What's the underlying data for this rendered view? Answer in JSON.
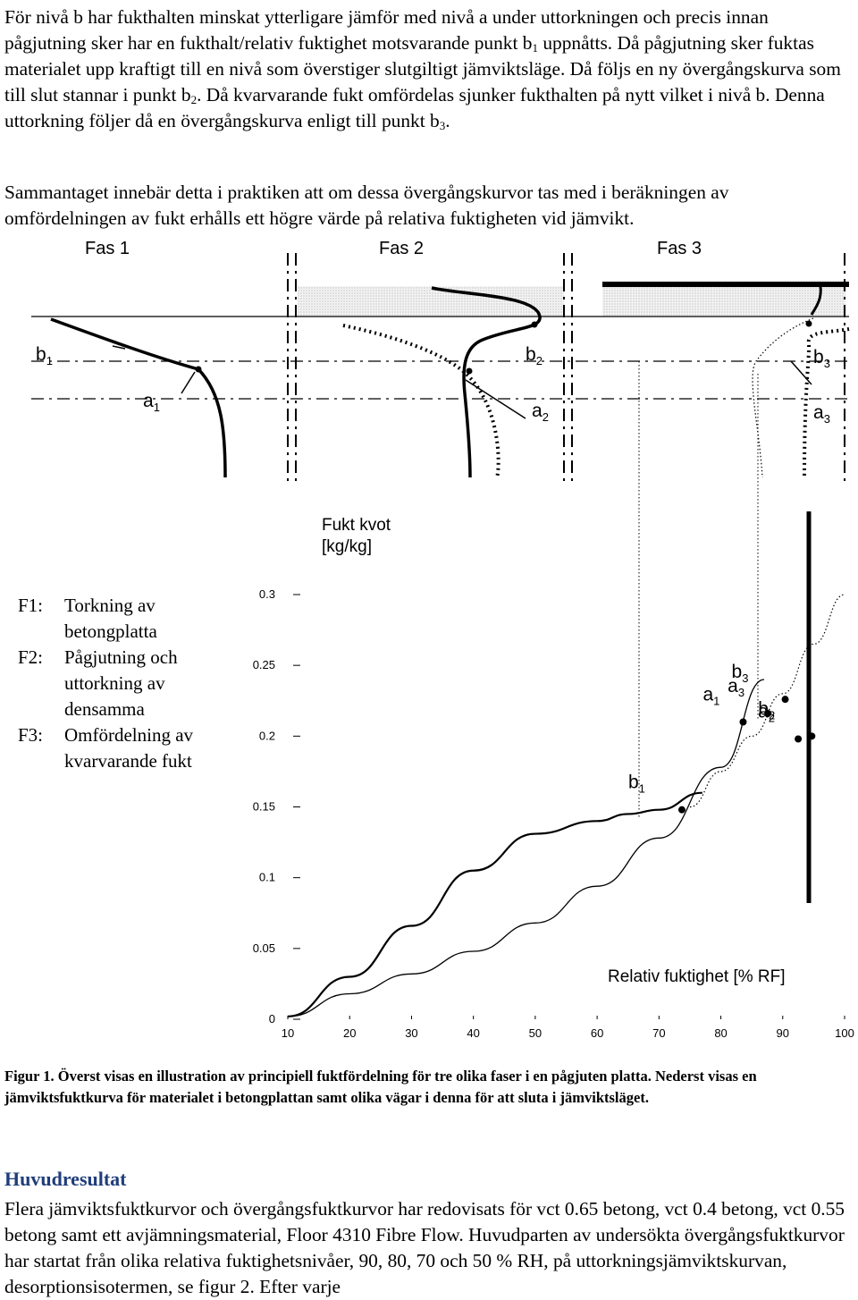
{
  "body_text": {
    "p1": [
      {
        "t": "För nivå b har fukthalten minskat ytterligare jämför med nivå a under uttorkningen och precis innan pågjutning sker har en fukthalt/relativ fuktighet motsvarande punkt b"
      },
      {
        "sub": "1"
      },
      {
        "t": " uppnåtts. Då pågjutning sker fuktas materialet upp kraftigt till en nivå som överstiger slutgiltigt jämviktsläge. Då följs en ny övergångskurva som till slut stannar i punkt b"
      },
      {
        "sub": "2"
      },
      {
        "t": ". Då kvarvarande fukt omfördelas sjunker fukthalten på nytt vilket i nivå b. Denna uttorkning följer då en övergångskurva enligt till punkt b"
      },
      {
        "sub": "3"
      },
      {
        "t": "."
      }
    ],
    "p2": "Sammantaget innebär detta i praktiken att om dessa övergångskurvor tas med i beräkningen av omfördelningen av fukt erhålls ett högre värde på relativa fuktigheten vid jämvikt."
  },
  "figure": {
    "phases": [
      {
        "title": "Fas 1",
        "points": [
          {
            "letter": "b",
            "sub": "1"
          },
          {
            "letter": "a",
            "sub": "1"
          }
        ]
      },
      {
        "title": "Fas 2",
        "points": [
          {
            "letter": "b",
            "sub": "2"
          },
          {
            "letter": "a",
            "sub": "2"
          }
        ]
      },
      {
        "title": "Fas 3",
        "points": [
          {
            "letter": "b",
            "sub": "3"
          },
          {
            "letter": "a",
            "sub": "3"
          }
        ]
      }
    ],
    "legend": [
      {
        "code": "F1:",
        "lines": [
          "Torkning av",
          "betongplatta"
        ]
      },
      {
        "code": "F2:",
        "lines": [
          "Pågjutning och",
          "uttorkning av",
          "densamma"
        ]
      },
      {
        "code": "F3:",
        "lines": [
          "Omfördelning av",
          "kvarvarande fukt"
        ]
      }
    ]
  },
  "chart_data": {
    "type": "line",
    "ylabel_lines": [
      "Fukt kvot",
      "[kg/kg]"
    ],
    "xlabel": "Relativ fuktighet [% RF]",
    "x_ticks": [
      "10",
      "20",
      "30",
      "40",
      "50",
      "60",
      "70",
      "80",
      "90",
      "100"
    ],
    "y_ticks": [
      "0",
      "0.05",
      "0.1",
      "0.15",
      "0.2",
      "0.25",
      "0.3"
    ],
    "xlim": [
      10,
      100
    ],
    "ylim": [
      0,
      0.3
    ],
    "series": [
      {
        "style": "solid",
        "x": [
          10,
          20,
          30,
          40,
          50,
          60,
          70,
          80,
          87
        ],
        "y": [
          0.002,
          0.018,
          0.032,
          0.048,
          0.068,
          0.094,
          0.128,
          0.178,
          0.24
        ]
      },
      {
        "style": "solid-thick",
        "x": [
          10,
          20,
          30,
          40,
          50,
          60,
          65,
          70,
          77
        ],
        "y": [
          0.002,
          0.03,
          0.066,
          0.105,
          0.131,
          0.14,
          0.145,
          0.148,
          0.16
        ]
      },
      {
        "style": "dotted",
        "x": [
          75,
          80,
          85,
          90,
          95,
          100
        ],
        "y": [
          0.15,
          0.175,
          0.2,
          0.23,
          0.265,
          0.3
        ]
      }
    ],
    "markers": [
      {
        "letter": "b",
        "sub": "1",
        "x": 73.7,
        "y": 0.148
      },
      {
        "letter": "a",
        "sub": "1",
        "x": 83.6,
        "y": 0.21
      },
      {
        "letter": "a",
        "sub": "3",
        "x": 87.6,
        "y": 0.216
      },
      {
        "letter": "b",
        "sub": "3",
        "x": 90.4,
        "y": 0.226
      },
      {
        "letter": "a",
        "sub": "2",
        "x": 92.5,
        "y": 0.198
      },
      {
        "letter": "b",
        "sub": "2",
        "x": 94.7,
        "y": 0.2
      }
    ]
  },
  "caption": "Figur 1. Överst visas en illustration av principiell fuktfördelning för tre olika faser i en pågjuten platta. Nederst visas en jämviktsfuktkurva för materialet i betongplattan samt olika vägar i denna för att sluta i jämviktsläget.",
  "section": {
    "title": "Huvudresultat",
    "text": "Flera jämviktsfuktkurvor och övergångsfuktkurvor har redovisats för vct 0.65 betong, vct 0.4 betong, vct 0.55 betong samt ett avjämningsmaterial, Floor 4310 Fibre Flow. Huvudparten av undersökta övergångsfuktkurvor har startat från olika relativa fuktighetsnivåer, 90, 80, 70 och 50 % RH, på uttorkningsjämviktskurvan, desorptionsisotermen, se figur 2. Efter varje"
  }
}
